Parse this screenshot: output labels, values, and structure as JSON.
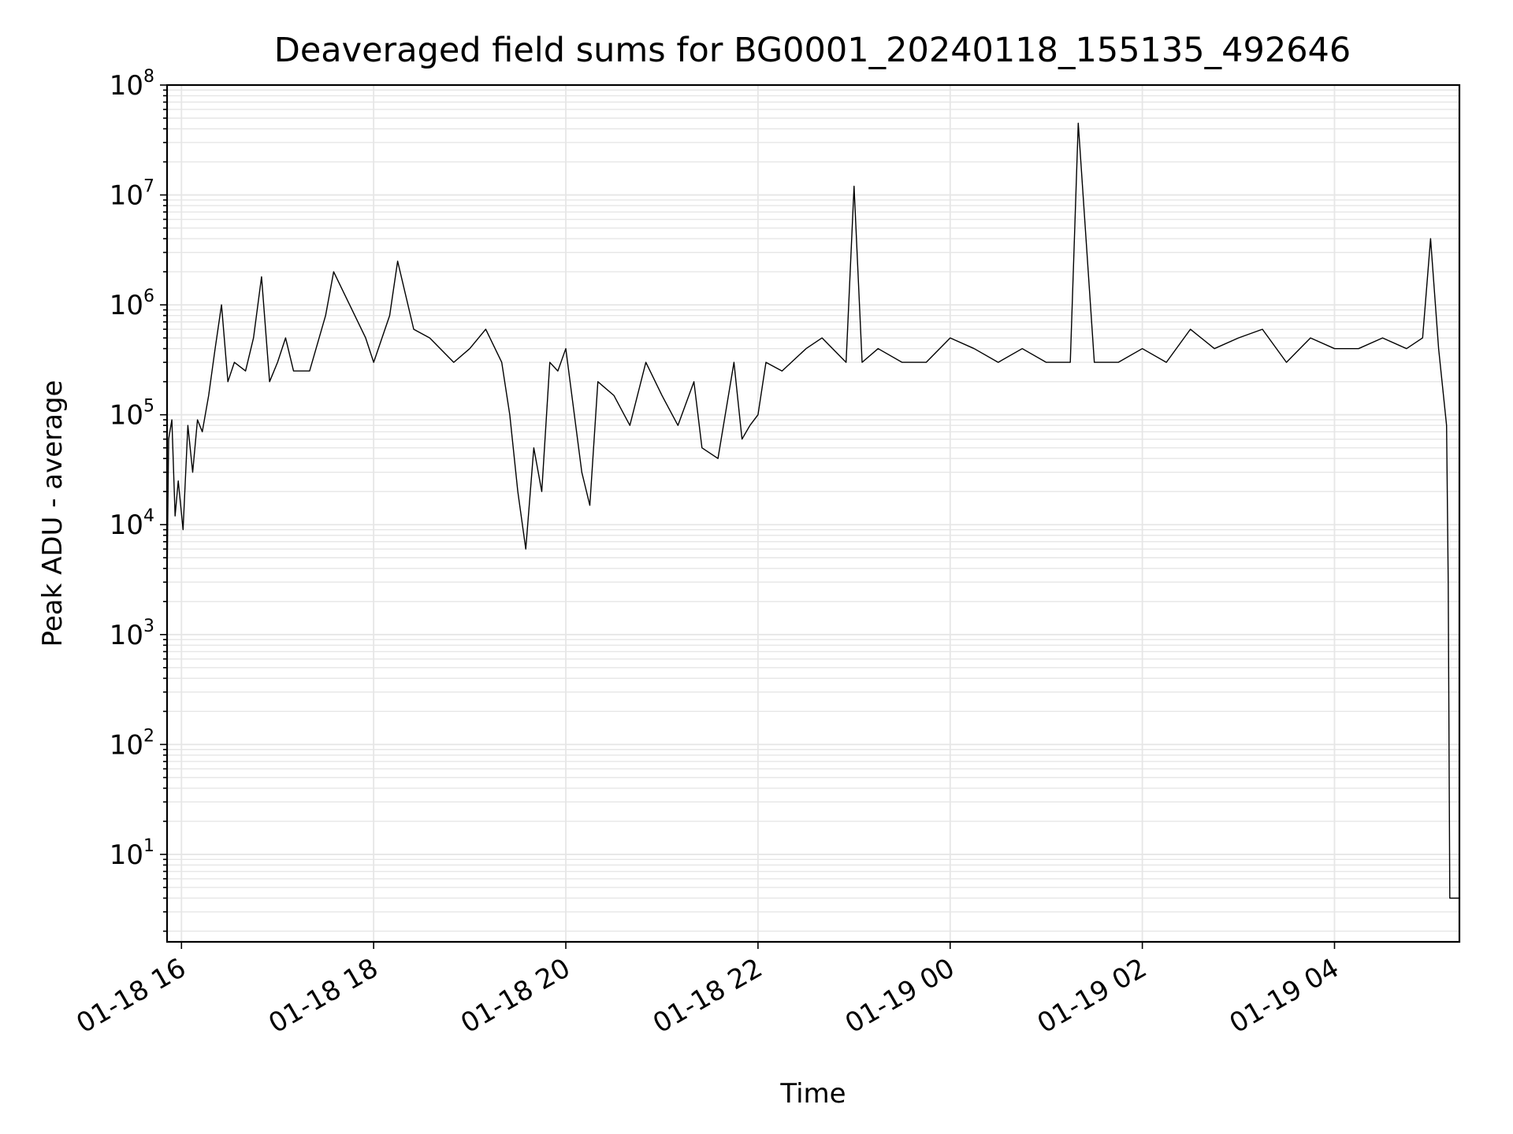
{
  "chart_data": {
    "type": "line",
    "title": "Deaveraged field sums for BG0001_20240118_155135_492646",
    "xlabel": "Time",
    "ylabel": "Peak ADU - average",
    "yscale": "log",
    "ylim": [
      1.6,
      100000000
    ],
    "xlim": [
      "01-18 15:51",
      "01-19 05:18"
    ],
    "x_tick_labels": [
      "01-18 16",
      "01-18 18",
      "01-18 20",
      "01-18 22",
      "01-19 00",
      "01-19 02",
      "01-19 04"
    ],
    "y_tick_labels": [
      {
        "value": 10,
        "base": "10",
        "exp": "1"
      },
      {
        "value": 100,
        "base": "10",
        "exp": "2"
      },
      {
        "value": 1000,
        "base": "10",
        "exp": "3"
      },
      {
        "value": 10000,
        "base": "10",
        "exp": "4"
      },
      {
        "value": 100000,
        "base": "10",
        "exp": "5"
      },
      {
        "value": 1000000,
        "base": "10",
        "exp": "6"
      },
      {
        "value": 10000000,
        "base": "10",
        "exp": "7"
      },
      {
        "value": 100000000,
        "base": "10",
        "exp": "8"
      }
    ],
    "grid": "major and minor",
    "line_color": "#000000",
    "grid_color": "#e6e6e6",
    "series": [
      {
        "x": [
          "01-18 15:51",
          "01-18 15:52",
          "01-18 15:54",
          "01-18 15:56",
          "01-18 15:58",
          "01-18 16:01",
          "01-18 16:04",
          "01-18 16:07",
          "01-18 16:10",
          "01-18 16:13",
          "01-18 16:17",
          "01-18 16:21",
          "01-18 16:25",
          "01-18 16:29",
          "01-18 16:33",
          "01-18 16:40",
          "01-18 16:45",
          "01-18 16:50",
          "01-18 16:55",
          "01-18 17:00",
          "01-18 17:05",
          "01-18 17:10",
          "01-18 17:20",
          "01-18 17:30",
          "01-18 17:35",
          "01-18 17:45",
          "01-18 17:55",
          "01-18 18:00",
          "01-18 18:10",
          "01-18 18:15",
          "01-18 18:25",
          "01-18 18:35",
          "01-18 18:50",
          "01-18 19:00",
          "01-18 19:10",
          "01-18 19:20",
          "01-18 19:25",
          "01-18 19:30",
          "01-18 19:35",
          "01-18 19:40",
          "01-18 19:45",
          "01-18 19:50",
          "01-18 19:55",
          "01-18 20:00",
          "01-18 20:10",
          "01-18 20:15",
          "01-18 20:20",
          "01-18 20:30",
          "01-18 20:40",
          "01-18 20:50",
          "01-18 21:00",
          "01-18 21:10",
          "01-18 21:20",
          "01-18 21:25",
          "01-18 21:35",
          "01-18 21:45",
          "01-18 21:50",
          "01-18 21:55",
          "01-18 22:00",
          "01-18 22:05",
          "01-18 22:15",
          "01-18 22:30",
          "01-18 22:40",
          "01-18 22:55",
          "01-18 23:00",
          "01-18 23:05",
          "01-18 23:15",
          "01-18 23:30",
          "01-18 23:45",
          "01-19 00:00",
          "01-19 00:15",
          "01-19 00:30",
          "01-19 00:45",
          "01-19 01:00",
          "01-19 01:15",
          "01-19 01:20",
          "01-19 01:30",
          "01-19 01:45",
          "01-19 02:00",
          "01-19 02:15",
          "01-19 02:30",
          "01-19 02:45",
          "01-19 03:00",
          "01-19 03:15",
          "01-19 03:30",
          "01-19 03:45",
          "01-19 04:00",
          "01-19 04:15",
          "01-19 04:30",
          "01-19 04:45",
          "01-19 04:55",
          "01-19 05:00",
          "01-19 05:05",
          "01-19 05:10",
          "01-19 05:11",
          "01-19 05:12",
          "01-19 05:14",
          "01-19 05:18"
        ],
        "y": [
          3000,
          60000,
          90000,
          12000,
          25000,
          9000,
          80000,
          30000,
          90000,
          70000,
          150000,
          400000,
          1000000,
          200000,
          300000,
          250000,
          500000,
          1800000,
          200000,
          300000,
          500000,
          250000,
          250000,
          800000,
          2000000,
          1000000,
          500000,
          300000,
          800000,
          2500000,
          600000,
          500000,
          300000,
          400000,
          600000,
          300000,
          100000,
          20000,
          6000,
          50000,
          20000,
          300000,
          250000,
          400000,
          30000,
          15000,
          200000,
          150000,
          80000,
          300000,
          150000,
          80000,
          200000,
          50000,
          40000,
          300000,
          60000,
          80000,
          100000,
          300000,
          250000,
          400000,
          500000,
          300000,
          12000000,
          300000,
          400000,
          300000,
          300000,
          500000,
          400000,
          300000,
          400000,
          300000,
          300000,
          45000000,
          300000,
          300000,
          400000,
          300000,
          600000,
          400000,
          500000,
          600000,
          300000,
          500000,
          400000,
          400000,
          500000,
          400000,
          500000,
          4000000,
          400000,
          80000,
          3000,
          4,
          4,
          4
        ]
      }
    ]
  }
}
